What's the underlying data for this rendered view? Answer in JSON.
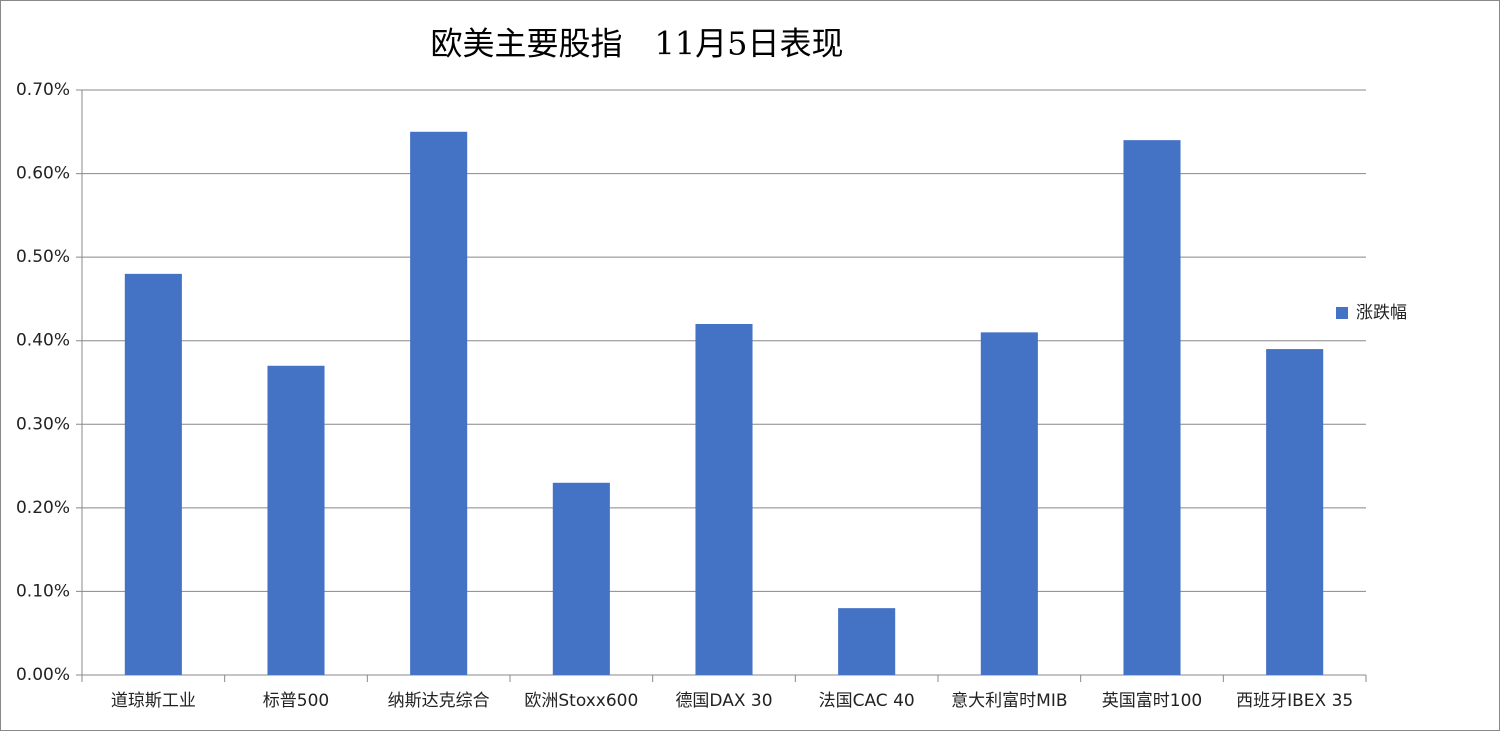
{
  "chart_data": {
    "type": "bar",
    "title": "欧美主要股指　11月5日表现",
    "categories": [
      "道琼斯工业",
      "标普500",
      "纳斯达克综合",
      "欧洲Stoxx600",
      "德国DAX 30",
      "法国CAC 40",
      "意大利富时MIB",
      "英国富时100",
      "西班牙IBEX 35"
    ],
    "series": [
      {
        "name": "涨跌幅",
        "color": "#4472c4",
        "values": [
          0.48,
          0.37,
          0.65,
          0.23,
          0.42,
          0.08,
          0.41,
          0.64,
          0.39
        ]
      }
    ],
    "ylim": [
      0,
      0.7
    ],
    "yticks": [
      {
        "value": 0,
        "label": "0.00%"
      },
      {
        "value": 0.1,
        "label": "0.10%"
      },
      {
        "value": 0.2,
        "label": "0.20%"
      },
      {
        "value": 0.3,
        "label": "0.30%"
      },
      {
        "value": 0.4,
        "label": "0.40%"
      },
      {
        "value": 0.5,
        "label": "0.50%"
      },
      {
        "value": 0.6,
        "label": "0.60%"
      },
      {
        "value": 0.7,
        "label": "0.70%"
      }
    ],
    "grid": true,
    "legend": "right"
  }
}
